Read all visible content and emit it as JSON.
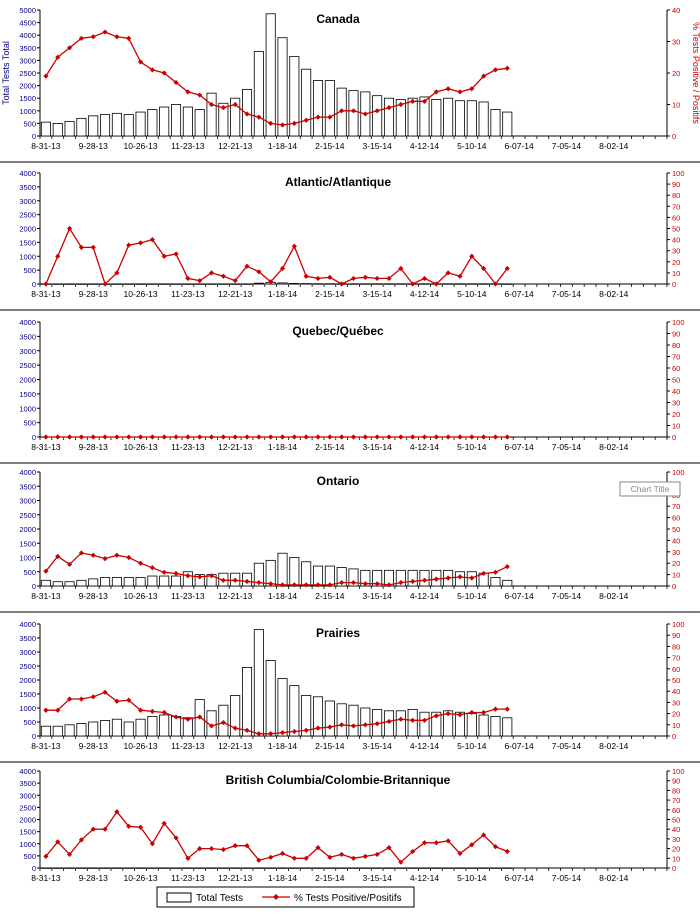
{
  "x_tick_labels": [
    "8-31-13",
    "9-28-13",
    "10-26-13",
    "11-23-13",
    "12-21-13",
    "1-18-14",
    "2-15-14",
    "3-15-14",
    "4-12-14",
    "5-10-14",
    "6-07-14",
    "7-05-14",
    "8-02-14"
  ],
  "legend": {
    "bars_label": "Total Tests",
    "line_label": "% Tests Positive/Positifs"
  },
  "tooltip": "Chart Title",
  "colors": {
    "bar_fill": "#ffffff",
    "bar_stroke": "#000000",
    "line": "#cc0000",
    "left_axis": "#000080",
    "right_axis": "#cc0000"
  },
  "chart_data": [
    {
      "type": "bar+line",
      "title": "Canada",
      "ylabel_left": "Total Tests Total",
      "ylabel_right": "% Tests Positive / Positifs",
      "ylim_left": [
        0,
        5000
      ],
      "left_step": 500,
      "ylim_right": [
        0,
        40
      ],
      "right_step": 10,
      "total_tests": [
        550,
        500,
        580,
        700,
        800,
        850,
        900,
        850,
        950,
        1050,
        1150,
        1250,
        1150,
        1050,
        1700,
        1300,
        1500,
        1850,
        3350,
        4850,
        3900,
        3150,
        2650,
        2200,
        2200,
        1900,
        1800,
        1750,
        1600,
        1500,
        1450,
        1500,
        1550,
        1450,
        1500,
        1400,
        1400,
        1350,
        1050,
        950
      ],
      "pct_positive": [
        19,
        25,
        28,
        31,
        31.5,
        33,
        31.5,
        31,
        23.5,
        21,
        20,
        17,
        14,
        13,
        10,
        9,
        10,
        7,
        6,
        4,
        3.5,
        4,
        5,
        6,
        6,
        8,
        8,
        7,
        8,
        9,
        10,
        11,
        11,
        14,
        15,
        14,
        15,
        19,
        21,
        21.5
      ]
    },
    {
      "type": "bar+line",
      "title": "Atlantic/Atlantique",
      "ylabel_left": "",
      "ylabel_right": "",
      "ylim_left": [
        0,
        4000
      ],
      "left_step": 500,
      "ylim_right": [
        0,
        100
      ],
      "right_step": 10,
      "total_tests": [
        5,
        5,
        5,
        5,
        5,
        5,
        5,
        5,
        5,
        5,
        5,
        5,
        5,
        5,
        5,
        5,
        5,
        5,
        30,
        60,
        40,
        20,
        15,
        10,
        10,
        8,
        8,
        8,
        8,
        8,
        8,
        8,
        8,
        8,
        8,
        8,
        8,
        8,
        8,
        5
      ],
      "pct_positive": [
        0,
        25,
        50,
        33,
        33,
        0,
        10,
        35,
        37,
        40,
        25,
        27,
        5,
        3,
        10,
        7,
        3,
        16,
        11,
        2,
        14,
        34,
        7,
        5,
        6,
        0,
        5,
        6,
        5,
        5,
        14,
        0,
        5,
        0,
        10,
        7,
        25,
        14,
        0,
        14
      ]
    },
    {
      "type": "bar+line",
      "title": "Quebec/Québec",
      "ylabel_left": "",
      "ylabel_right": "",
      "ylim_left": [
        0,
        4000
      ],
      "left_step": 500,
      "ylim_right": [
        0,
        100
      ],
      "right_step": 10,
      "total_tests": [
        0,
        0,
        0,
        0,
        0,
        0,
        0,
        0,
        0,
        0,
        0,
        0,
        0,
        0,
        0,
        0,
        0,
        0,
        0,
        0,
        0,
        0,
        0,
        0,
        0,
        0,
        0,
        0,
        0,
        0,
        0,
        0,
        0,
        0,
        0,
        0,
        0,
        0,
        0,
        0
      ],
      "pct_positive": [
        0,
        0,
        0,
        0,
        0,
        0,
        0,
        0,
        0,
        0,
        0,
        0,
        0,
        0,
        0,
        0,
        0,
        0,
        0,
        0,
        0,
        0,
        0,
        0,
        0,
        0,
        0,
        0,
        0,
        0,
        0,
        0,
        0,
        0,
        0,
        0,
        0,
        0,
        0,
        0
      ]
    },
    {
      "type": "bar+line",
      "title": "Ontario",
      "ylabel_left": "",
      "ylabel_right": "",
      "ylim_left": [
        0,
        4000
      ],
      "left_step": 500,
      "ylim_right": [
        0,
        100
      ],
      "right_step": 10,
      "total_tests": [
        200,
        150,
        150,
        200,
        250,
        300,
        300,
        300,
        300,
        350,
        350,
        350,
        500,
        400,
        400,
        450,
        450,
        450,
        800,
        900,
        1150,
        1000,
        850,
        700,
        700,
        650,
        600,
        550,
        550,
        550,
        550,
        550,
        550,
        550,
        550,
        500,
        500,
        450,
        300,
        200
      ],
      "pct_positive": [
        13,
        26,
        19,
        29,
        27,
        24,
        27,
        25,
        20,
        16,
        12,
        11,
        9,
        8,
        9,
        5,
        5,
        4,
        3,
        2,
        1,
        1,
        1,
        1,
        1,
        3,
        3,
        2,
        2,
        1,
        3,
        4,
        5,
        6,
        7,
        8,
        7,
        11,
        12,
        17
      ]
    },
    {
      "type": "bar+line",
      "title": "Prairies",
      "ylabel_left": "",
      "ylabel_right": "",
      "ylim_left": [
        0,
        4000
      ],
      "left_step": 500,
      "ylim_right": [
        0,
        100
      ],
      "right_step": 10,
      "total_tests": [
        350,
        350,
        400,
        450,
        500,
        550,
        600,
        500,
        600,
        700,
        750,
        700,
        650,
        1300,
        900,
        1100,
        1450,
        2450,
        3800,
        2700,
        2050,
        1800,
        1450,
        1400,
        1250,
        1150,
        1100,
        1000,
        950,
        900,
        900,
        950,
        850,
        850,
        900,
        850,
        800,
        750,
        700,
        650
      ],
      "pct_positive": [
        23,
        23,
        33,
        33,
        35,
        39,
        31,
        32,
        23,
        22,
        21,
        17,
        15,
        17,
        9,
        12,
        7,
        5,
        2,
        2,
        3,
        4,
        5,
        7,
        8,
        10,
        9,
        10,
        11,
        13,
        15,
        14,
        14,
        18,
        20,
        19,
        21,
        21,
        24,
        24
      ]
    },
    {
      "type": "bar+line",
      "title": "British Columbia/Colombie-Britannique",
      "ylabel_left": "",
      "ylabel_right": "",
      "ylim_left": [
        0,
        4000
      ],
      "left_step": 500,
      "ylim_right": [
        0,
        100
      ],
      "right_step": 10,
      "total_tests": [
        5,
        5,
        5,
        5,
        5,
        5,
        5,
        5,
        5,
        5,
        5,
        5,
        5,
        5,
        5,
        5,
        5,
        5,
        5,
        5,
        5,
        5,
        5,
        5,
        5,
        5,
        5,
        5,
        5,
        5,
        5,
        5,
        5,
        5,
        5,
        5,
        5,
        5,
        5,
        5
      ],
      "pct_positive": [
        12,
        27,
        14,
        29,
        40,
        40,
        58,
        43,
        42,
        25,
        46,
        31,
        10,
        20,
        20,
        19,
        23,
        23,
        8,
        11,
        15,
        10,
        10,
        21,
        11,
        14,
        10,
        12,
        14,
        21,
        6,
        17,
        26,
        26,
        28,
        15,
        24,
        34,
        22,
        17
      ]
    }
  ]
}
